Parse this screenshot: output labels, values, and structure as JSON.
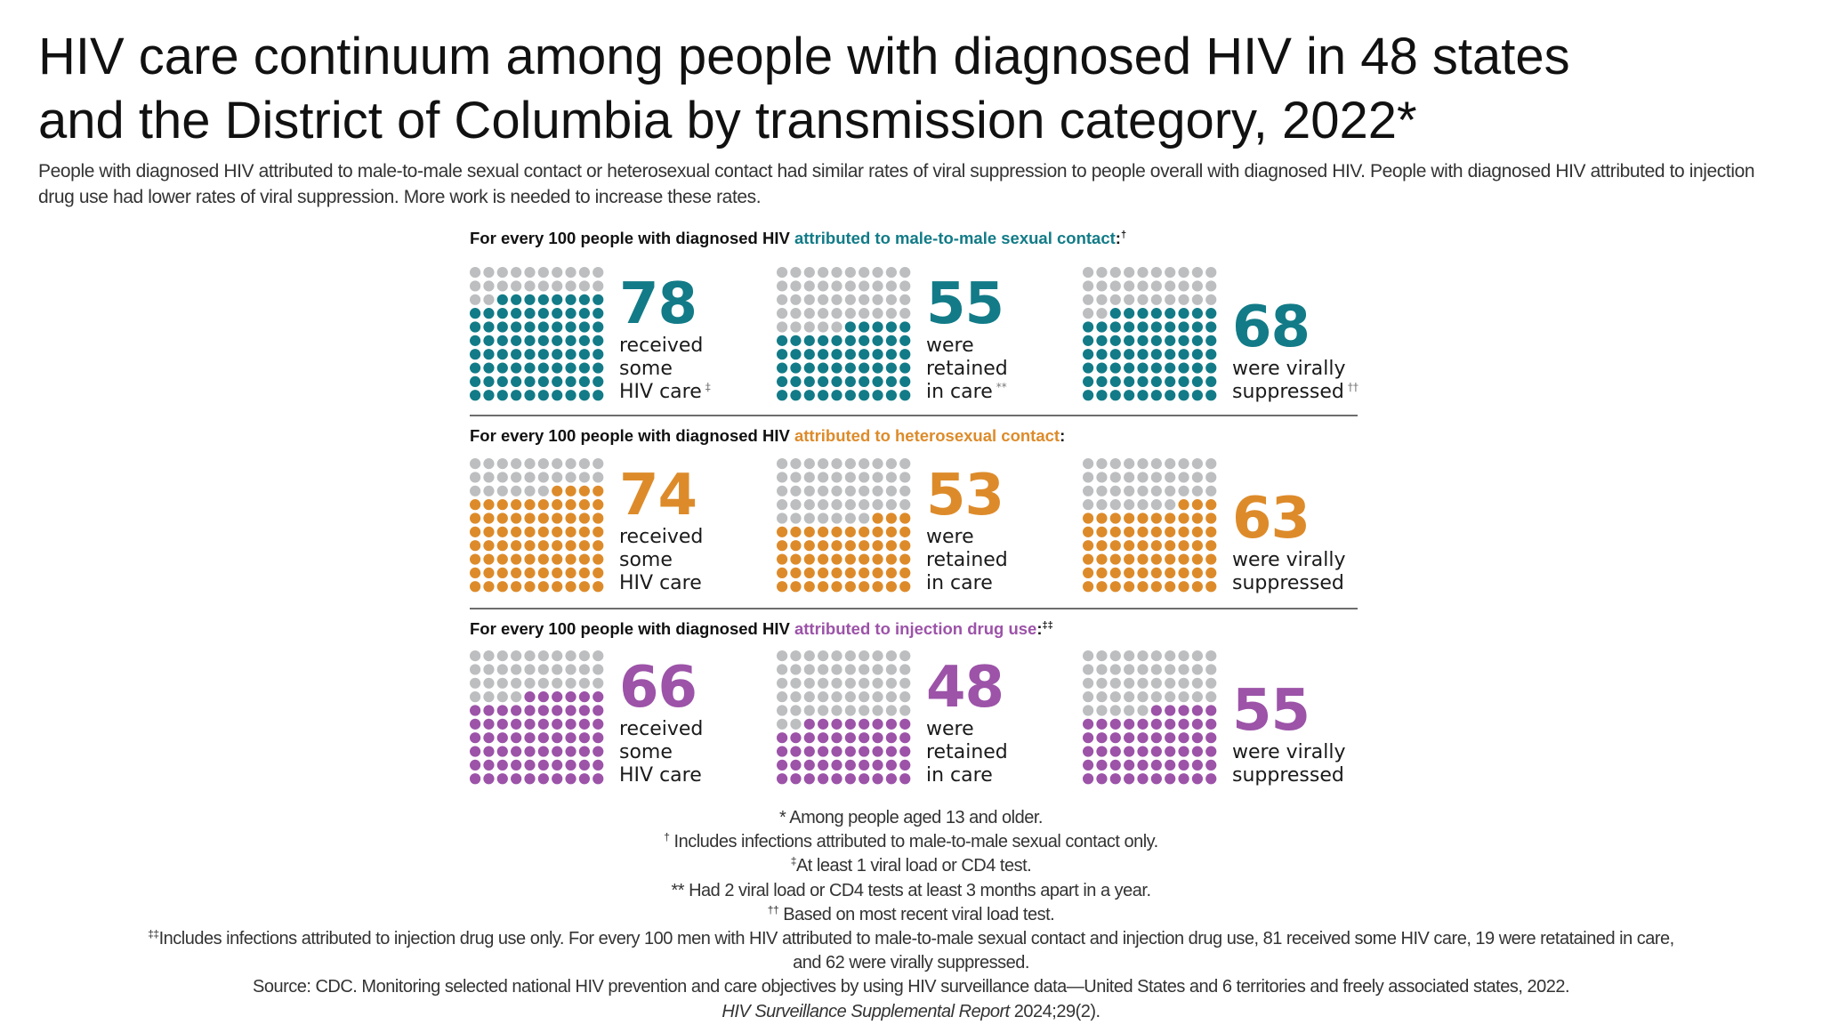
{
  "title_line1": "HIV care continuum among people with diagnosed HIV in 48 states",
  "title_line2": "and the District of Columbia by transmission category, 2022*",
  "subtitle": "People with diagnosed HIV attributed to male-to-male sexual contact or heterosexual contact had similar rates of viral suppression to people overall with diagnosed HIV. People with diagnosed HIV attributed to injection drug use had lower rates of viral suppression. More work is needed to increase these rates.",
  "colors": {
    "empty": "#bcbec0",
    "msm": "#127b87",
    "hetero": "#dd8b2a",
    "idu": "#9c53a8"
  },
  "chart_data": {
    "type": "pictogram",
    "title": "HIV care continuum among people with diagnosed HIV in 48 states and the District of Columbia by transmission category, 2022*",
    "unit": "per 100 people with diagnosed HIV",
    "categories": [
      "received some HIV care",
      "were retained in care",
      "were virally suppressed"
    ],
    "series": [
      {
        "name": "attributed to male-to-male sexual contact",
        "values": [
          78,
          55,
          68
        ]
      },
      {
        "name": "attributed to heterosexual contact",
        "values": [
          74,
          53,
          63
        ]
      },
      {
        "name": "attributed to injection drug use",
        "values": [
          66,
          48,
          55
        ]
      }
    ]
  },
  "sections": [
    {
      "key": "msm",
      "header_prefix": "For every 100 people with diagnosed HIV ",
      "header_highlight": "attributed to male-to-male sexual contact",
      "header_suffix": ":",
      "header_footnote": "†",
      "stats": [
        {
          "value": "78",
          "line1": "received",
          "line2": "some",
          "line3": "HIV care",
          "footnote": "‡"
        },
        {
          "value": "55",
          "line1": "were",
          "line2": "retained",
          "line3": "in care",
          "footnote": "**"
        },
        {
          "value": "68",
          "line1": "were virally",
          "line2": "suppressed",
          "footnote": "††"
        }
      ]
    },
    {
      "key": "hetero",
      "header_prefix": "For every 100 people with diagnosed HIV ",
      "header_highlight": "attributed to heterosexual contact",
      "header_suffix": ":",
      "header_footnote": "",
      "stats": [
        {
          "value": "74",
          "line1": "received",
          "line2": "some",
          "line3": "HIV care",
          "footnote": ""
        },
        {
          "value": "53",
          "line1": "were",
          "line2": "retained",
          "line3": "in care",
          "footnote": ""
        },
        {
          "value": "63",
          "line1": "were virally",
          "line2": "suppressed",
          "footnote": ""
        }
      ]
    },
    {
      "key": "idu",
      "header_prefix": "For every 100 people with diagnosed HIV ",
      "header_highlight": "attributed to injection drug use",
      "header_suffix": ":",
      "header_footnote": "‡‡",
      "stats": [
        {
          "value": "66",
          "line1": "received",
          "line2": "some",
          "line3": "HIV care",
          "footnote": ""
        },
        {
          "value": "48",
          "line1": "were",
          "line2": "retained",
          "line3": "in care",
          "footnote": ""
        },
        {
          "value": "55",
          "line1": "were virally",
          "line2": "suppressed",
          "footnote": ""
        }
      ]
    }
  ],
  "footnotes": {
    "f1": "* Among people aged 13 and older.",
    "f2_mark": "†",
    "f2": " Includes infections attributed to male-to-male sexual contact only.",
    "f3_mark": "‡",
    "f3": "At least 1 viral load or CD4 test.",
    "f4": "** Had 2 viral load or CD4 tests at least 3 months apart in a year.",
    "f5_mark": "††",
    "f5": " Based on most recent viral load test.",
    "f6_mark": "‡‡",
    "f6a": "Includes infections attributed to injection drug use only.  For every 100 men with HIV attributed to male-to-male sexual contact and injection drug use, 81 received some HIV care, 19 were retatained in care,",
    "f6b": "and 62 were virally suppressed.",
    "source": "Source: CDC. Monitoring selected national HIV prevention and care objectives by using HIV surveillance data—United States and 6 territories and freely associated states, 2022.",
    "citation_italic": "HIV Surveillance Supplemental Report",
    "citation_rest": " 2024;29(2)."
  }
}
